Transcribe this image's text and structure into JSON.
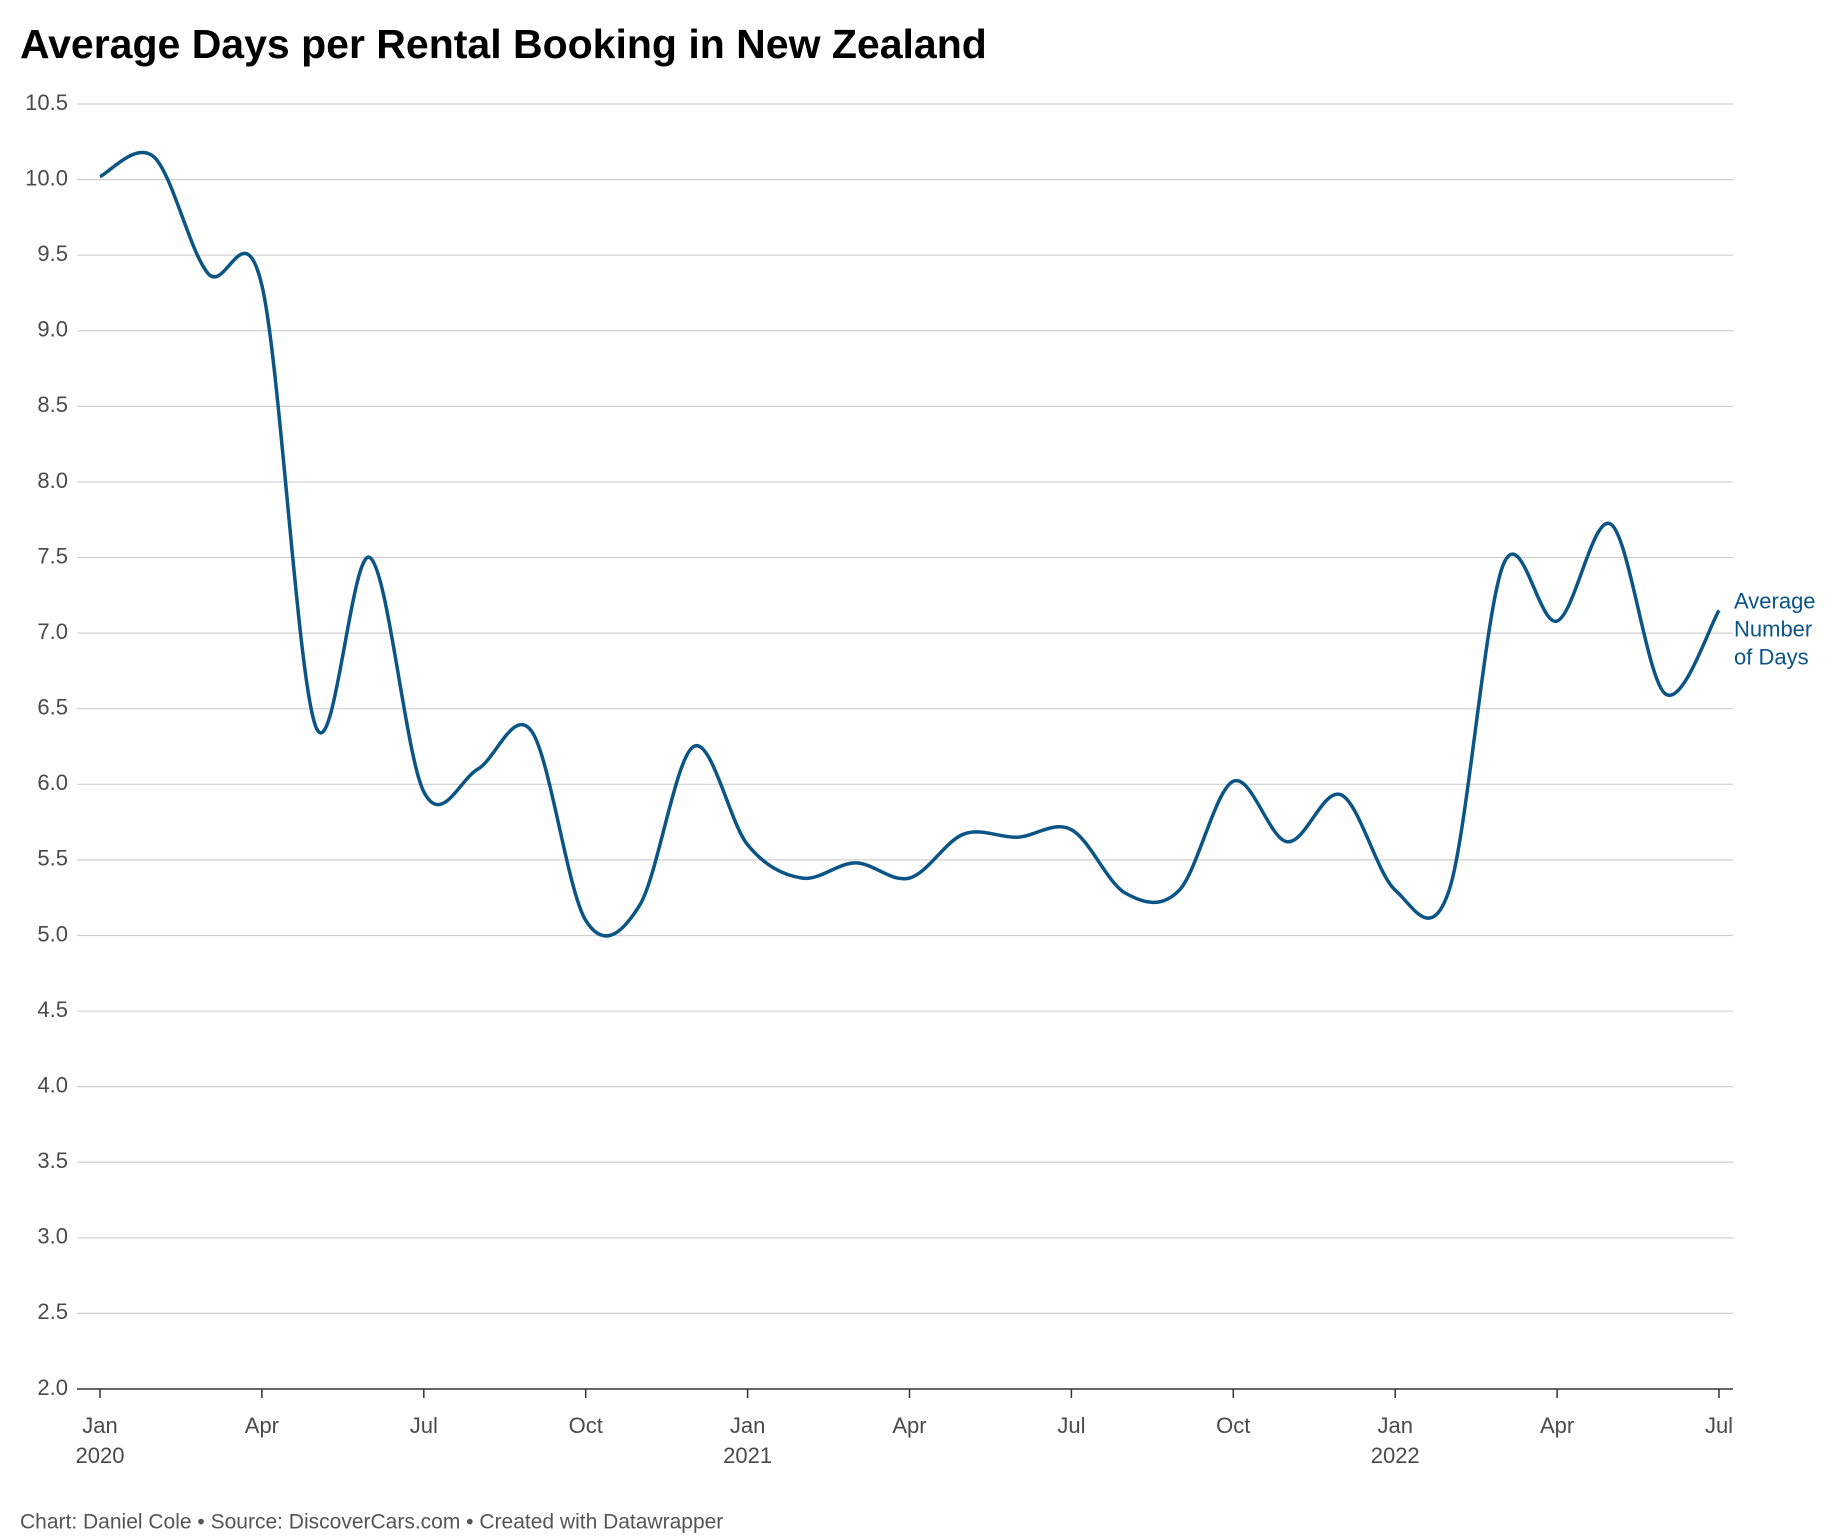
{
  "chart_data": {
    "type": "line",
    "title": "Average Days per Rental Booking in New Zealand",
    "footer": "Chart: Daniel Cole • Source: DiscoverCars.com • Created with Datawrapper",
    "x": [
      "2020-01",
      "2020-02",
      "2020-03",
      "2020-04",
      "2020-05",
      "2020-06",
      "2020-07",
      "2020-08",
      "2020-09",
      "2020-10",
      "2020-11",
      "2020-12",
      "2021-01",
      "2021-02",
      "2021-03",
      "2021-04",
      "2021-05",
      "2021-06",
      "2021-07",
      "2021-08",
      "2021-09",
      "2021-10",
      "2021-11",
      "2021-12",
      "2022-01",
      "2022-02",
      "2022-03",
      "2022-04",
      "2022-05",
      "2022-06",
      "2022-07"
    ],
    "series": [
      {
        "name": "Average Number of Days",
        "color": "#0b5486",
        "values": [
          10.02,
          10.15,
          9.38,
          9.3,
          6.38,
          7.5,
          5.95,
          6.1,
          6.35,
          5.1,
          5.2,
          6.25,
          5.6,
          5.38,
          5.48,
          5.38,
          5.67,
          5.65,
          5.7,
          5.28,
          5.3,
          6.02,
          5.62,
          5.93,
          5.3,
          5.3,
          7.45,
          7.08,
          7.72,
          6.6,
          7.15
        ]
      }
    ],
    "xlim": [
      "2020-01",
      "2022-07"
    ],
    "xticks": [
      {
        "value": "2020-01",
        "label": [
          "Jan",
          "2020"
        ]
      },
      {
        "value": "2020-04",
        "label": [
          "Apr"
        ]
      },
      {
        "value": "2020-07",
        "label": [
          "Jul"
        ]
      },
      {
        "value": "2020-10",
        "label": [
          "Oct"
        ]
      },
      {
        "value": "2021-01",
        "label": [
          "Jan",
          "2021"
        ]
      },
      {
        "value": "2021-04",
        "label": [
          "Apr"
        ]
      },
      {
        "value": "2021-07",
        "label": [
          "Jul"
        ]
      },
      {
        "value": "2021-10",
        "label": [
          "Oct"
        ]
      },
      {
        "value": "2022-01",
        "label": [
          "Jan",
          "2022"
        ]
      },
      {
        "value": "2022-04",
        "label": [
          "Apr"
        ]
      },
      {
        "value": "2022-07",
        "label": [
          "Jul"
        ]
      }
    ],
    "ylim": [
      2,
      10.5
    ],
    "yticks": [
      {
        "value": 2,
        "label": "2.0"
      },
      {
        "value": 2.5,
        "label": "2.5"
      },
      {
        "value": 3,
        "label": "3.0"
      },
      {
        "value": 3.5,
        "label": "3.5"
      },
      {
        "value": 4,
        "label": "4.0"
      },
      {
        "value": 4.5,
        "label": "4.5"
      },
      {
        "value": 5,
        "label": "5.0"
      },
      {
        "value": 5.5,
        "label": "5.5"
      },
      {
        "value": 6,
        "label": "6.0"
      },
      {
        "value": 6.5,
        "label": "6.5"
      },
      {
        "value": 7,
        "label": "7.0"
      },
      {
        "value": 7.5,
        "label": "7.5"
      },
      {
        "value": 8,
        "label": "8.0"
      },
      {
        "value": 8.5,
        "label": "8.5"
      },
      {
        "value": 9,
        "label": "9.0"
      },
      {
        "value": 9.5,
        "label": "9.5"
      },
      {
        "value": 10,
        "label": "10.0"
      },
      {
        "value": 10.5,
        "label": "10.5"
      }
    ],
    "grid": true
  }
}
